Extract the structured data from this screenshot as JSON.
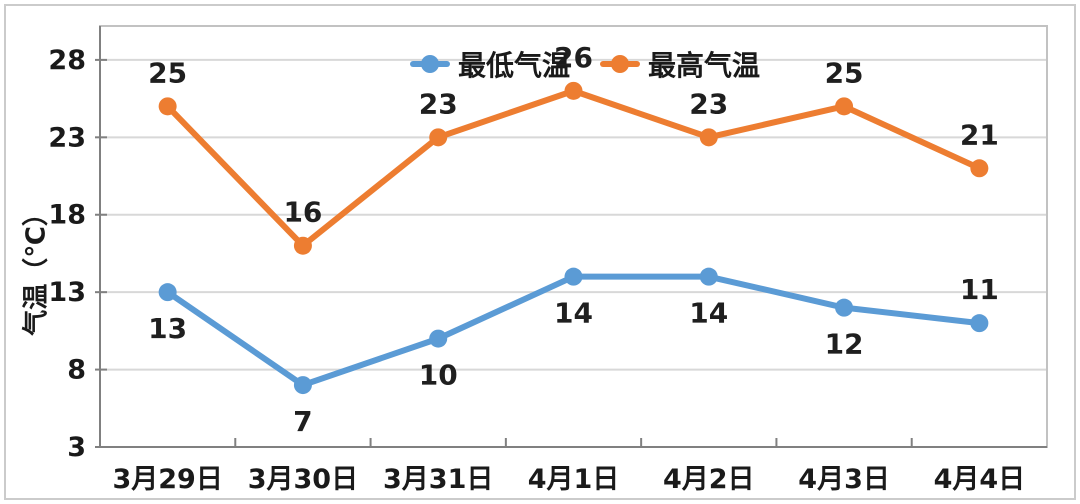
{
  "chart_data": {
    "type": "line",
    "categories": [
      "3月29日",
      "3月30日",
      "3月31日",
      "4月1日",
      "4月2日",
      "4月3日",
      "4月4日"
    ],
    "series": [
      {
        "name": "最低气温",
        "color": "#5B9BD5",
        "values": [
          13,
          7,
          10,
          14,
          14,
          12,
          11
        ],
        "label_positions": [
          "below",
          "below",
          "below",
          "below",
          "below",
          "below",
          "above"
        ]
      },
      {
        "name": "最高气温",
        "color": "#ED7D31",
        "values": [
          25,
          16,
          23,
          26,
          23,
          25,
          21
        ],
        "label_positions": [
          "above",
          "above",
          "above",
          "above",
          "above",
          "above",
          "above"
        ]
      }
    ],
    "ylabel": "气温（℃）",
    "xlabel": "",
    "y_ticks": [
      3,
      8,
      13,
      18,
      23,
      28
    ],
    "ylim": [
      3,
      30.2
    ],
    "grid": true,
    "data_labels": true,
    "legend_position": "top-center"
  }
}
